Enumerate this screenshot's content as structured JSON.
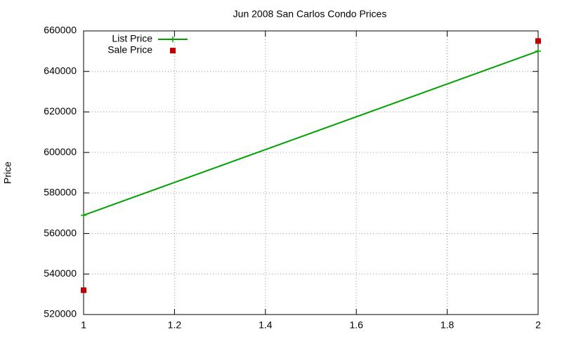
{
  "chart_data": {
    "type": "line",
    "title": "Jun 2008 San Carlos Condo Prices",
    "y_label": "Price",
    "x": [
      1,
      2
    ],
    "series": [
      {
        "name": "List Price",
        "color": "#00a000",
        "style": "linespoints",
        "values": [
          569000,
          650000
        ]
      },
      {
        "name": "Sale Price",
        "color": "#c00000",
        "style": "points",
        "values": [
          532000,
          655000
        ]
      }
    ],
    "xlim": [
      1,
      2
    ],
    "xticks": [
      1,
      1.2,
      1.4,
      1.6,
      1.8,
      2
    ],
    "ylim": [
      520000,
      660000
    ],
    "yticks": [
      520000,
      540000,
      560000,
      580000,
      600000,
      620000,
      640000,
      660000
    ],
    "grid": true,
    "legend": "top-left"
  }
}
